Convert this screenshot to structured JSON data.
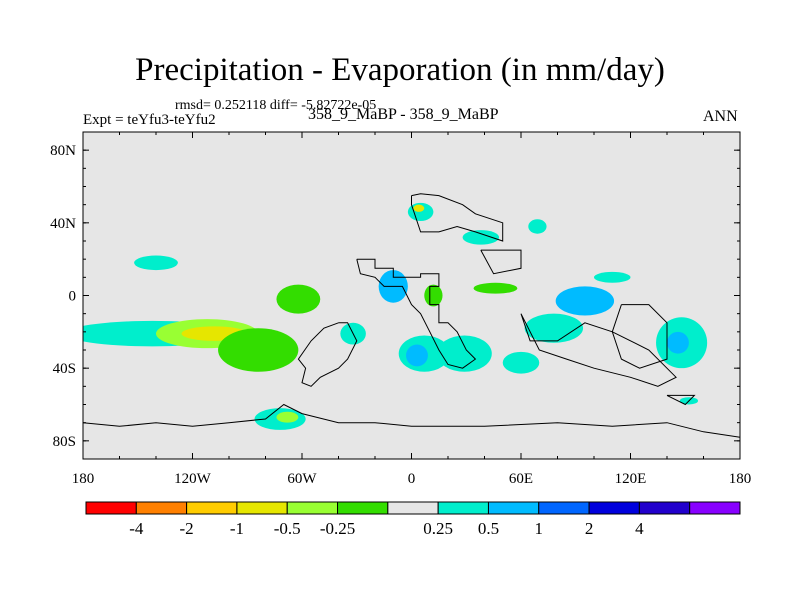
{
  "header": {
    "title": "Precipitation - Evaporation (in mm/day)",
    "stats": "rmsd= 0.252118 diff= -5.82722e-05",
    "experiment": "Expt = teYfu3-teYfu2",
    "case": "358_9_MaBP - 358_9_MaBP",
    "season": "ANN"
  },
  "chart_data": {
    "type": "heatmap",
    "title": "Precipitation - Evaporation (in mm/day)",
    "xlim": [
      -180,
      180
    ],
    "ylim": [
      -90,
      90
    ],
    "x_ticks": [
      {
        "value": -180,
        "label": "180"
      },
      {
        "value": -120,
        "label": "120W"
      },
      {
        "value": -60,
        "label": "60W"
      },
      {
        "value": 0,
        "label": "0"
      },
      {
        "value": 60,
        "label": "60E"
      },
      {
        "value": 120,
        "label": "120E"
      },
      {
        "value": 180,
        "label": "180"
      }
    ],
    "y_ticks": [
      {
        "value": 80,
        "label": "80N"
      },
      {
        "value": 40,
        "label": "40N"
      },
      {
        "value": 0,
        "label": "0"
      },
      {
        "value": -40,
        "label": "40S"
      },
      {
        "value": -80,
        "label": "80S"
      }
    ],
    "background_color": "#e6e6e6",
    "colorbar": {
      "colors": [
        "#ff0000",
        "#ff8000",
        "#ffcc00",
        "#e6e600",
        "#99ff33",
        "#33dd00",
        "#e6e6e6",
        "#00eecc",
        "#00bbff",
        "#0066ff",
        "#0000dd",
        "#2200cc",
        "#8800ff"
      ],
      "levels": [
        "-4",
        "-2",
        "-1",
        "-0.5",
        "-0.25",
        "0.25",
        "0.5",
        "1",
        "2",
        "4"
      ]
    },
    "anomaly_regions": [
      {
        "lon": -142,
        "lat": -21,
        "rx": 48,
        "ry": 7,
        "color": "#00eecc"
      },
      {
        "lon": -112,
        "lat": -21,
        "rx": 28,
        "ry": 8,
        "color": "#99ff33"
      },
      {
        "lon": -108,
        "lat": -21,
        "rx": 18,
        "ry": 4,
        "color": "#e6e600"
      },
      {
        "lon": -84,
        "lat": -30,
        "rx": 22,
        "ry": 12,
        "color": "#33dd00"
      },
      {
        "lon": -62,
        "lat": -2,
        "rx": 12,
        "ry": 8,
        "color": "#33dd00"
      },
      {
        "lon": -72,
        "lat": -68,
        "rx": 14,
        "ry": 6,
        "color": "#00eecc"
      },
      {
        "lon": -68,
        "lat": -67,
        "rx": 6,
        "ry": 3,
        "color": "#99ff33"
      },
      {
        "lon": -140,
        "lat": 18,
        "rx": 12,
        "ry": 4,
        "color": "#00eecc"
      },
      {
        "lon": -32,
        "lat": -21,
        "rx": 7,
        "ry": 6,
        "color": "#00eecc"
      },
      {
        "lon": -10,
        "lat": 5,
        "rx": 8,
        "ry": 9,
        "color": "#00bbff"
      },
      {
        "lon": 12,
        "lat": 0,
        "rx": 5,
        "ry": 6,
        "color": "#33dd00"
      },
      {
        "lon": 7,
        "lat": -32,
        "rx": 14,
        "ry": 10,
        "color": "#00eecc"
      },
      {
        "lon": 3,
        "lat": -33,
        "rx": 6,
        "ry": 6,
        "color": "#00bbff"
      },
      {
        "lon": 29,
        "lat": -32,
        "rx": 15,
        "ry": 10,
        "color": "#00eecc"
      },
      {
        "lon": 5,
        "lat": 46,
        "rx": 7,
        "ry": 5,
        "color": "#00eecc"
      },
      {
        "lon": 4,
        "lat": 48,
        "rx": 3,
        "ry": 2,
        "color": "#e6e600"
      },
      {
        "lon": 38,
        "lat": 32,
        "rx": 10,
        "ry": 4,
        "color": "#00eecc"
      },
      {
        "lon": 69,
        "lat": 38,
        "rx": 5,
        "ry": 4,
        "color": "#00eecc"
      },
      {
        "lon": 95,
        "lat": -3,
        "rx": 16,
        "ry": 8,
        "color": "#00bbff"
      },
      {
        "lon": 78,
        "lat": -18,
        "rx": 16,
        "ry": 8,
        "color": "#00eecc"
      },
      {
        "lon": 148,
        "lat": -26,
        "rx": 14,
        "ry": 14,
        "color": "#00eecc"
      },
      {
        "lon": 146,
        "lat": -26,
        "rx": 6,
        "ry": 6,
        "color": "#00bbff"
      },
      {
        "lon": 60,
        "lat": -37,
        "rx": 10,
        "ry": 6,
        "color": "#00eecc"
      },
      {
        "lon": 110,
        "lat": 10,
        "rx": 10,
        "ry": 3,
        "color": "#00eecc"
      },
      {
        "lon": 46,
        "lat": 4,
        "rx": 12,
        "ry": 3,
        "color": "#33dd00"
      },
      {
        "lon": 152,
        "lat": -58,
        "rx": 5,
        "ry": 2,
        "color": "#00eecc"
      }
    ],
    "land_outlines": [
      [
        [
          -30,
          20
        ],
        [
          -20,
          20
        ],
        [
          -20,
          15
        ],
        [
          -10,
          15
        ],
        [
          -10,
          10
        ],
        [
          5,
          10
        ],
        [
          5,
          12
        ],
        [
          15,
          12
        ],
        [
          15,
          5
        ],
        [
          10,
          5
        ],
        [
          10,
          -5
        ],
        [
          15,
          -5
        ],
        [
          15,
          -15
        ],
        [
          20,
          -15
        ],
        [
          25,
          -20
        ],
        [
          30,
          -30
        ],
        [
          35,
          -35
        ],
        [
          28,
          -40
        ],
        [
          20,
          -38
        ],
        [
          15,
          -30
        ],
        [
          10,
          -20
        ],
        [
          5,
          -10
        ],
        [
          0,
          -5
        ],
        [
          -5,
          5
        ],
        [
          -15,
          5
        ],
        [
          -20,
          10
        ],
        [
          -28,
          12
        ],
        [
          -30,
          20
        ]
      ],
      [
        [
          -40,
          -15
        ],
        [
          -35,
          -15
        ],
        [
          -30,
          -25
        ],
        [
          -35,
          -35
        ],
        [
          -40,
          -40
        ],
        [
          -50,
          -45
        ],
        [
          -55,
          -50
        ],
        [
          -60,
          -48
        ],
        [
          -58,
          -40
        ],
        [
          -62,
          -35
        ],
        [
          -55,
          -25
        ],
        [
          -48,
          -18
        ],
        [
          -40,
          -15
        ]
      ],
      [
        [
          0,
          55
        ],
        [
          0,
          50
        ],
        [
          5,
          35
        ],
        [
          15,
          35
        ],
        [
          25,
          38
        ],
        [
          35,
          35
        ],
        [
          50,
          30
        ],
        [
          50,
          40
        ],
        [
          35,
          45
        ],
        [
          28,
          50
        ],
        [
          15,
          55
        ],
        [
          5,
          56
        ],
        [
          0,
          55
        ]
      ],
      [
        [
          38,
          25
        ],
        [
          60,
          25
        ],
        [
          60,
          15
        ],
        [
          45,
          12
        ],
        [
          38,
          25
        ]
      ],
      [
        [
          60,
          -10
        ],
        [
          65,
          -25
        ],
        [
          80,
          -25
        ],
        [
          95,
          -15
        ],
        [
          110,
          -20
        ],
        [
          130,
          -30
        ],
        [
          145,
          -45
        ],
        [
          135,
          -50
        ],
        [
          120,
          -45
        ],
        [
          100,
          -40
        ],
        [
          85,
          -35
        ],
        [
          70,
          -30
        ],
        [
          60,
          -10
        ]
      ],
      [
        [
          115,
          -5
        ],
        [
          130,
          -5
        ],
        [
          140,
          -15
        ],
        [
          140,
          -35
        ],
        [
          125,
          -40
        ],
        [
          115,
          -35
        ],
        [
          110,
          -20
        ],
        [
          115,
          -5
        ]
      ],
      [
        [
          140,
          -55
        ],
        [
          155,
          -55
        ],
        [
          150,
          -60
        ],
        [
          140,
          -55
        ]
      ],
      [
        [
          -180,
          -70
        ],
        [
          -160,
          -72
        ],
        [
          -140,
          -70
        ],
        [
          -120,
          -72
        ],
        [
          -100,
          -70
        ],
        [
          -80,
          -68
        ],
        [
          -70,
          -60
        ],
        [
          -60,
          -65
        ],
        [
          -40,
          -70
        ],
        [
          -20,
          -70
        ],
        [
          0,
          -72
        ],
        [
          40,
          -72
        ],
        [
          80,
          -70
        ],
        [
          110,
          -72
        ],
        [
          140,
          -70
        ],
        [
          160,
          -75
        ],
        [
          180,
          -78
        ],
        [
          180,
          -90
        ],
        [
          -180,
          -90
        ],
        [
          -180,
          -70
        ]
      ]
    ]
  }
}
